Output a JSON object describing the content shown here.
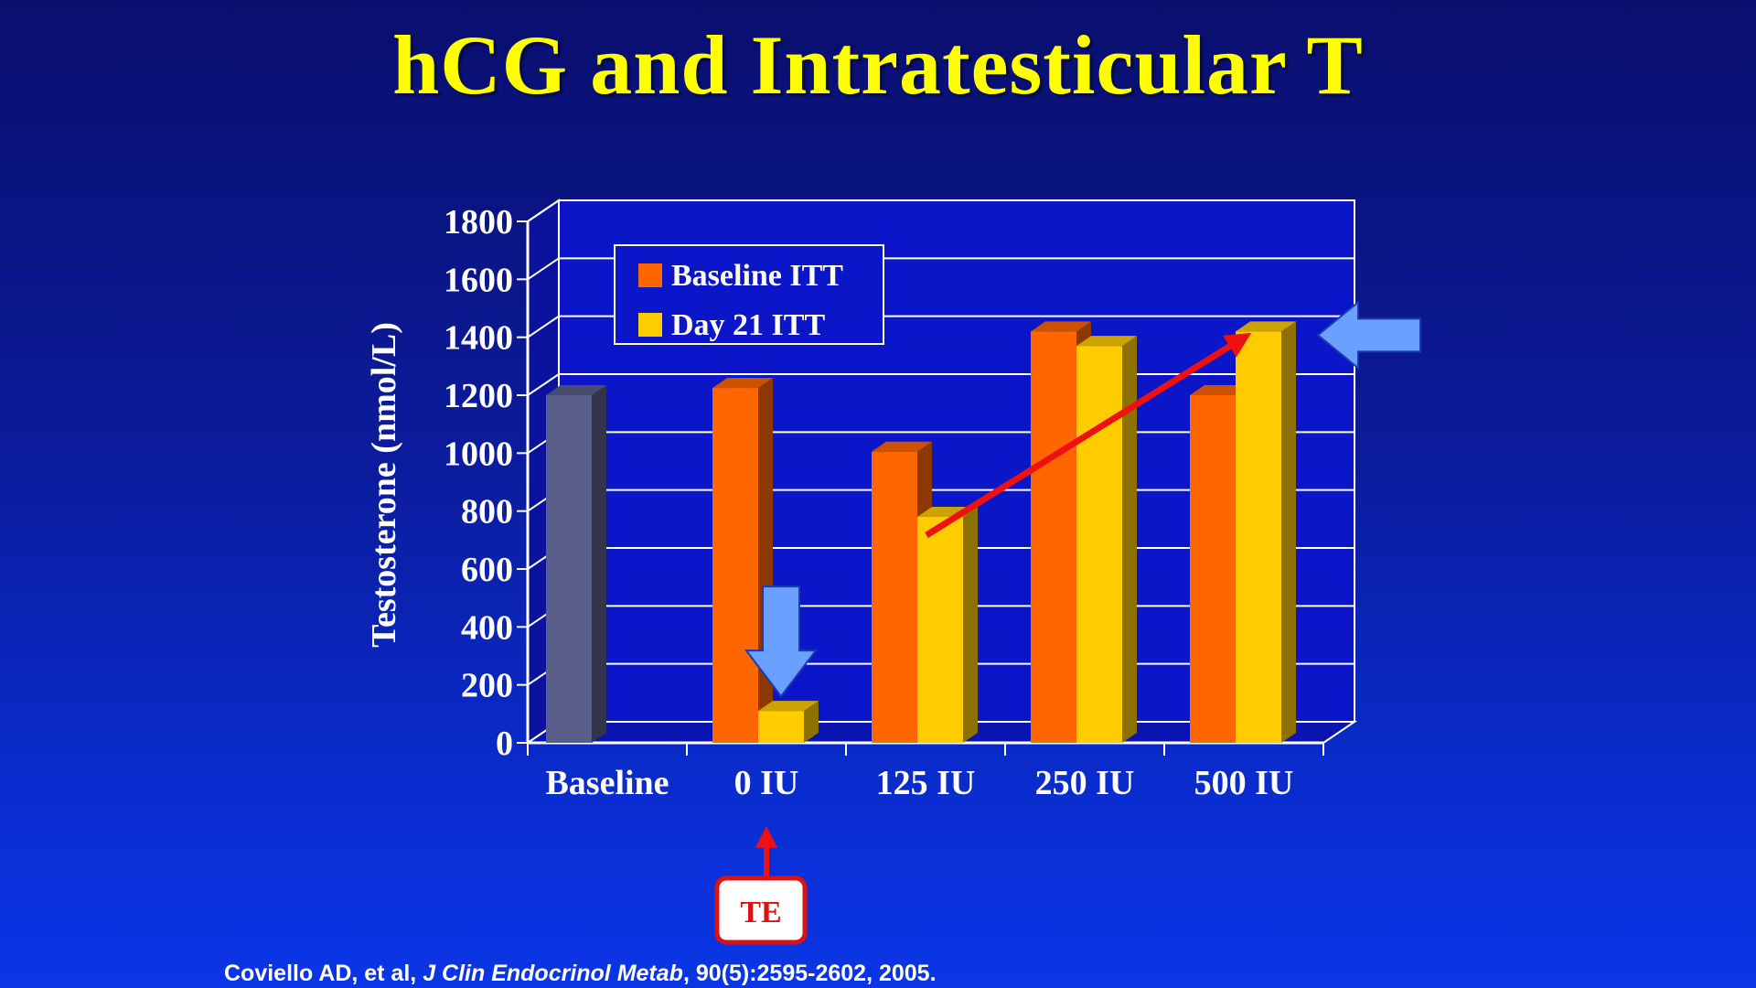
{
  "slide": {
    "title": "hCG and Intratesticular T",
    "te_label": "TE",
    "citation": {
      "prefix": "Coviello AD, et al, ",
      "journal": "J Clin Endocrinol Metab",
      "suffix": ", 90(5):2595-2602, 2005."
    }
  },
  "colors": {
    "background": "#0b1b9a",
    "title": "#ffff00",
    "baseline_itt": "#ff6600",
    "day21_itt": "#ffcc00",
    "baseline_bar": "#5a5f8a",
    "plot_wall": "#0a16c8",
    "annotation_arrow_red": "#ee1111",
    "annotation_arrow_blue": "#6aa0ff"
  },
  "chart_data": {
    "type": "bar",
    "title": "",
    "xlabel": "",
    "ylabel": "Testosterone (nmol/L)",
    "ylim": [
      0,
      1800
    ],
    "yticks": [
      0,
      200,
      400,
      600,
      800,
      1000,
      1200,
      1400,
      1600,
      1800
    ],
    "categories": [
      "Baseline",
      "0 IU",
      "125 IU",
      "250 IU",
      "500 IU"
    ],
    "baseline_value": 1200,
    "series": [
      {
        "name": "Baseline ITT",
        "values": [
          null,
          1225,
          1005,
          1420,
          1200
        ]
      },
      {
        "name": "Day 21 ITT",
        "values": [
          null,
          110,
          780,
          1370,
          1420
        ]
      }
    ],
    "legend": "top-left, inside plot",
    "grid": true,
    "three_d": true
  }
}
